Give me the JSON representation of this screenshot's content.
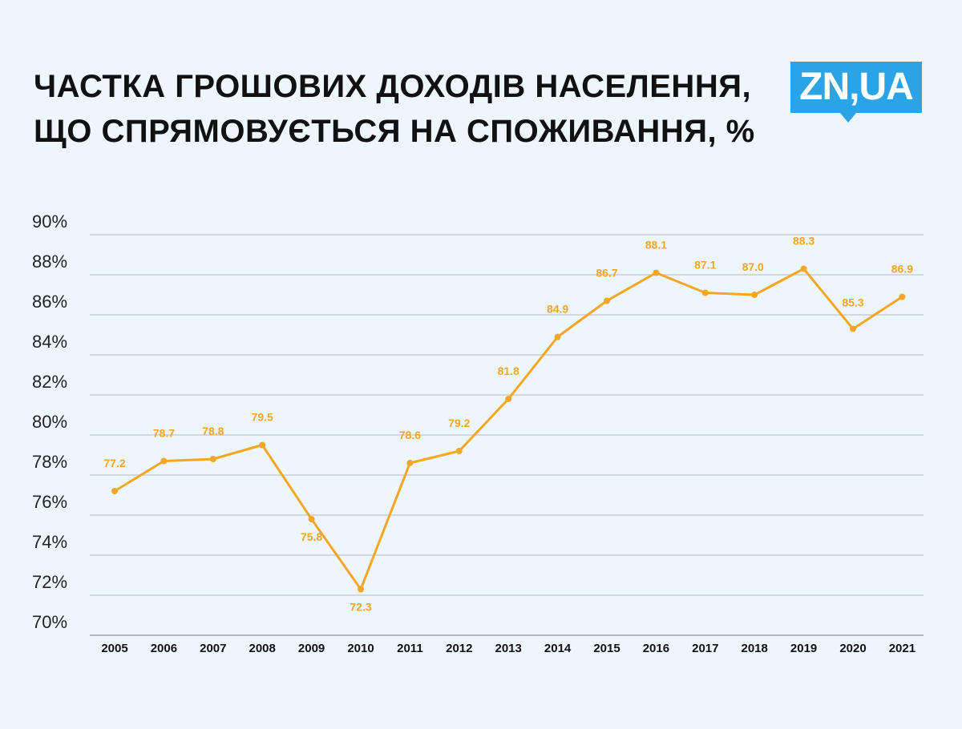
{
  "header": {
    "title_line1": "ЧАСТКА ГРОШОВИХ ДОХОДІВ НАСЕЛЕННЯ,",
    "title_line2": "ЩО СПРЯМОВУЄТЬСЯ НА СПОЖИВАННЯ, %"
  },
  "logo": {
    "text": "ZN,UA",
    "color": "#2aa4e6"
  },
  "chart_data": {
    "type": "line",
    "title": "ЧАСТКА ГРОШОВИХ ДОХОДІВ НАСЕЛЕННЯ, ЩО СПРЯМОВУЄТЬСЯ НА СПОЖИВАННЯ, %",
    "xlabel": "",
    "ylabel": "",
    "ylim": [
      70,
      90
    ],
    "yticks": [
      90,
      88,
      86,
      84,
      82,
      80,
      78,
      76,
      74,
      72,
      70
    ],
    "ytick_labels": [
      "90%",
      "88%",
      "86%",
      "84%",
      "82%",
      "80%",
      "78%",
      "76%",
      "74%",
      "72%",
      "70%"
    ],
    "categories": [
      "2005",
      "2006",
      "2007",
      "2008",
      "2009",
      "2010",
      "2011",
      "2012",
      "2013",
      "2014",
      "2015",
      "2016",
      "2017",
      "2018",
      "2019",
      "2020",
      "2021"
    ],
    "series": [
      {
        "color": "#f5a623",
        "values": [
          77.2,
          78.7,
          78.8,
          79.5,
          75.8,
          72.3,
          78.6,
          79.2,
          81.8,
          84.9,
          86.7,
          88.1,
          87.1,
          87.0,
          88.3,
          85.3,
          86.9
        ],
        "labels": [
          "77.2",
          "78.7",
          "78.8",
          "79.5",
          "75.8",
          "72.3",
          "78.6",
          "79.2",
          "81.8",
          "84.9",
          "86.7",
          "88.1",
          "87.1",
          "87.0",
          "88.3",
          "85.3",
          "86.9"
        ]
      }
    ],
    "grid": true,
    "legend": "none"
  }
}
